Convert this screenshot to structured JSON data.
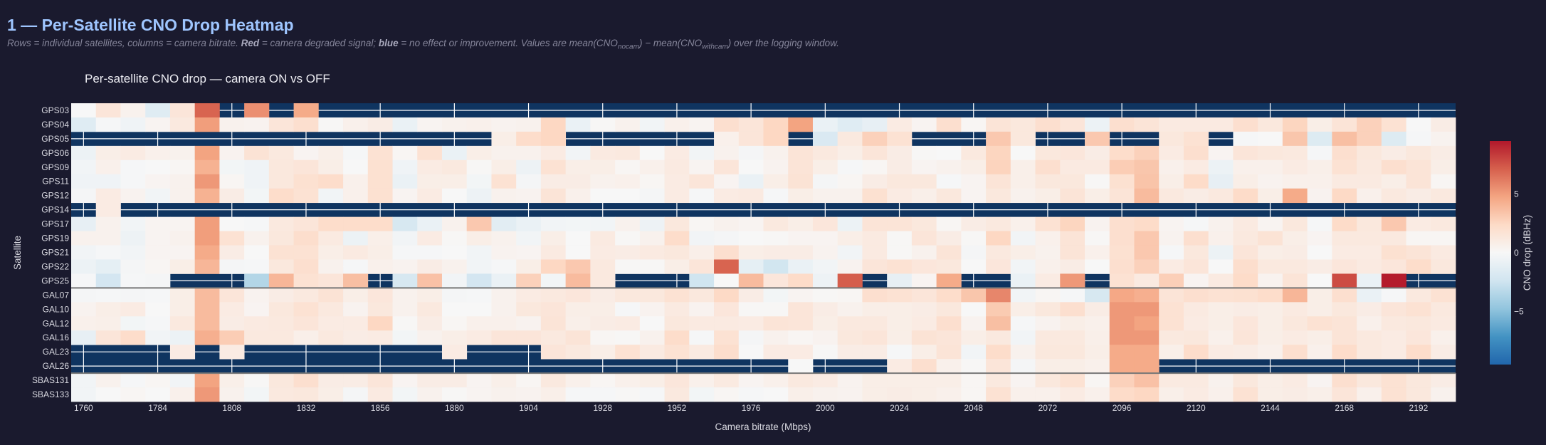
{
  "header": {
    "title": "1 — Per-Satellite CNO Drop Heatmap",
    "desc_1": "Rows = individual satellites, columns = camera bitrate. ",
    "desc_red": "Red",
    "desc_2": " = camera degraded signal; ",
    "desc_blue": "blue",
    "desc_3": " = no effect or improvement. Values are mean(CNO",
    "desc_sub1": "nocam",
    "desc_4": ") − mean(CNO",
    "desc_sub2": "withcam",
    "desc_5": ") over the logging window."
  },
  "colors": {
    "background": "#1a1a2e",
    "plot_background": "#0f3460",
    "title": "#9ec5fe",
    "colorscale": [
      "#2166ac",
      "#4393c3",
      "#92c5de",
      "#d1e5f0",
      "#f7f7f7",
      "#fddbc7",
      "#f4a582",
      "#d6604d",
      "#b2182b"
    ]
  },
  "chart_data": {
    "type": "heatmap",
    "title": "Per-satellite CNO drop — camera ON vs OFF",
    "xlabel": "Camera bitrate (Mbps)",
    "ylabel": "Satellite",
    "x": [
      1760,
      1768,
      1776,
      1784,
      1792,
      1800,
      1808,
      1816,
      1824,
      1832,
      1840,
      1848,
      1856,
      1864,
      1872,
      1880,
      1888,
      1896,
      1904,
      1912,
      1920,
      1928,
      1936,
      1944,
      1952,
      1960,
      1968,
      1976,
      1984,
      1992,
      2000,
      2008,
      2016,
      2024,
      2032,
      2040,
      2048,
      2056,
      2064,
      2072,
      2080,
      2088,
      2096,
      2104,
      2112,
      2120,
      2128,
      2136,
      2144,
      2152,
      2160,
      2168,
      2176,
      2184,
      2192,
      2200
    ],
    "x_ticks": [
      "1760",
      "1784",
      "1808",
      "1832",
      "1856",
      "1880",
      "1904",
      "1928",
      "1952",
      "1976",
      "2000",
      "2024",
      "2048",
      "2072",
      "2096",
      "2120",
      "2144",
      "2168",
      "2192"
    ],
    "y": [
      "GPS03",
      "GPS04",
      "GPS05",
      "GPS06",
      "GPS09",
      "GPS11",
      "GPS12",
      "GPS14",
      "GPS17",
      "GPS19",
      "GPS21",
      "GPS22",
      "GPS25",
      "GAL07",
      "GAL10",
      "GAL12",
      "GAL16",
      "GAL23",
      "GAL26",
      "SBAS131",
      "SBAS133"
    ],
    "zmin": -9.5,
    "zmax": 9.5,
    "colorbar": {
      "title": "CNO drop (dBHz)",
      "ticks": [
        5,
        0,
        -5
      ],
      "tick_labels": [
        "5",
        "0",
        "−5"
      ]
    },
    "missing_shown_as": "plot background",
    "z": [
      [
        0,
        1.5,
        0.5,
        -1.5,
        1.5,
        7,
        null,
        5.5,
        null,
        4.5,
        null,
        null,
        null,
        null,
        null,
        null,
        null,
        null,
        null,
        null,
        null,
        null,
        null,
        null,
        null,
        null,
        null,
        null,
        null,
        null,
        null,
        null,
        null,
        null,
        null,
        null,
        null,
        null,
        null,
        null,
        null,
        null,
        null,
        null,
        null,
        null,
        null,
        null,
        null,
        null,
        null,
        null,
        null,
        null,
        null,
        null
      ],
      [
        -1.5,
        -0.1,
        -0.5,
        0.3,
        1.2,
        5,
        0.5,
        0.4,
        1.5,
        2,
        0.1,
        0.6,
        0.9,
        -0.8,
        0.3,
        0.5,
        0.6,
        0.4,
        0.5,
        2.5,
        -0.8,
        0.1,
        0.5,
        -0.4,
        0.6,
        0.3,
        2,
        1.5,
        2.5,
        4.8,
        -0.8,
        -1.5,
        -1,
        1,
        0.3,
        2,
        0.2,
        1.6,
        1.3,
        2,
        1.5,
        -0.7,
        2,
        1.6,
        1.1,
        1.1,
        1.1,
        2,
        1.3,
        2.6,
        0.8,
        1.6,
        2.8,
        1.8,
        0,
        0.9
      ],
      [
        null,
        null,
        null,
        null,
        null,
        null,
        null,
        null,
        null,
        null,
        null,
        null,
        null,
        null,
        null,
        null,
        null,
        0.8,
        2.2,
        2.5,
        null,
        null,
        null,
        null,
        null,
        null,
        0.6,
        1.5,
        2.5,
        null,
        -1.8,
        1.2,
        2.8,
        1.8,
        null,
        null,
        null,
        3.2,
        1.3,
        null,
        null,
        3.2,
        null,
        null,
        1.3,
        1.8,
        null,
        -0.1,
        0,
        3.3,
        -1.6,
        3.6,
        2.8,
        -1.6,
        -0.1,
        0.4
      ],
      [
        -0.7,
        0.8,
        1,
        0.6,
        0.5,
        4.8,
        0.4,
        1.7,
        1.2,
        0.3,
        0.7,
        -0.1,
        1.8,
        0.2,
        1.8,
        -0.8,
        0.8,
        0.5,
        0.5,
        1,
        -0.4,
        1.1,
        1.2,
        0,
        1,
        -0.4,
        0.5,
        -0.2,
        0.5,
        1.6,
        1.2,
        0.8,
        1.5,
        0.9,
        0.1,
        0,
        1.2,
        2.6,
        0,
        1.3,
        1.4,
        0.9,
        2.2,
        2.8,
        1,
        2,
        0.3,
        1.5,
        1.3,
        1.2,
        -0.1,
        2,
        1.3,
        0.9,
        1.3,
        0.9
      ],
      [
        -0.4,
        0.6,
        -0.1,
        0,
        0.2,
        4.2,
        -0.3,
        -0.5,
        1.3,
        1.5,
        0.8,
        0,
        1.9,
        -0.5,
        1,
        1.2,
        0.1,
        0.8,
        -0.6,
        1.8,
        0.8,
        0.8,
        0.2,
        0.6,
        1.1,
        0.3,
        1.5,
        0,
        0.4,
        1.6,
        0.8,
        -0.1,
        0.2,
        0.9,
        0.3,
        0.5,
        0.8,
        2.7,
        0.7,
        2,
        1.1,
        1.1,
        3,
        3.3,
        0.6,
        1,
        -0.7,
        0.6,
        0.6,
        1,
        0.7,
        1.8,
        1.2,
        2,
        1.6,
        0.8
      ],
      [
        -0.5,
        -0.5,
        -0.1,
        0.3,
        0.5,
        5.2,
        0.2,
        -0.5,
        1.3,
        1.9,
        2.2,
        0.6,
        1.9,
        -0.8,
        0.8,
        0.8,
        -0.3,
        1.8,
        -0.2,
        0.9,
        0.9,
        0.5,
        0.6,
        0.2,
        1,
        1.5,
        0.3,
        -0.8,
        0.8,
        1.7,
        -0.2,
        0.2,
        0.9,
        1.3,
        1.3,
        -0.1,
        0.3,
        1.6,
        0.7,
        1.3,
        1.3,
        0.1,
        1.9,
        3.4,
        0.8,
        2.3,
        -1,
        0.8,
        0.4,
        0.6,
        0.6,
        1.1,
        1.1,
        0.8,
        1.6,
        0.2
      ],
      [
        -0.2,
        1,
        0.4,
        -0.4,
        0.5,
        4.2,
        0.9,
        -0.3,
        2.2,
        1.8,
        -0.4,
        0.6,
        1.9,
        0.3,
        1,
        0,
        -0.6,
        0.5,
        0.4,
        1.6,
        0.6,
        0,
        0,
        -0.2,
        1,
        -0.1,
        1,
        1.1,
        -0.1,
        0.8,
        0.5,
        0.5,
        1.9,
        1,
        0.7,
        1.3,
        0.3,
        1.3,
        0.5,
        0.8,
        1.6,
        0.8,
        1.6,
        3.8,
        1.2,
        0.9,
        1.2,
        2.3,
        0.8,
        4.5,
        0.4,
        2.4,
        0.6,
        1.2,
        0.9,
        1.2
      ],
      [
        null,
        1,
        null,
        null,
        null,
        null,
        null,
        null,
        null,
        null,
        null,
        null,
        null,
        null,
        null,
        null,
        null,
        null,
        null,
        null,
        null,
        null,
        null,
        null,
        null,
        null,
        null,
        null,
        null,
        null,
        null,
        null,
        null,
        null,
        null,
        null,
        null,
        null,
        null,
        null,
        null,
        null,
        null,
        null,
        null,
        null,
        null,
        null,
        null,
        null,
        null,
        null,
        null,
        null,
        null,
        null
      ],
      [
        -1,
        0.5,
        -0.4,
        0.3,
        0.3,
        5,
        0,
        -0.1,
        1.2,
        1.5,
        2.2,
        2.2,
        2.2,
        -2,
        -0.8,
        0.5,
        3.2,
        -1.3,
        -0.8,
        -0.4,
        -0.3,
        -0.4,
        0.5,
        -0.6,
        1.3,
        0.2,
        0.5,
        0.3,
        1.2,
        0.8,
        1.4,
        -0.7,
        1.6,
        1.6,
        1.3,
        0.2,
        0.9,
        1.2,
        0.6,
        1.8,
        2.6,
        0.4,
        2,
        2.3,
        0.3,
        -0.1,
        0.5,
        1.1,
        0.3,
        1.3,
        -0.1,
        2.3,
        1.3,
        3.2,
        1,
        1.2
      ],
      [
        0.5,
        0.5,
        -0.6,
        0.3,
        0.5,
        5,
        1.8,
        0.5,
        1.3,
        2.1,
        1.1,
        -0.7,
        0.7,
        -0.4,
        1,
        0.1,
        0.8,
        0.5,
        -0.4,
        0.8,
        0,
        1.1,
        0.1,
        0.5,
        2.2,
        -0.4,
        -0.2,
        0,
        0.1,
        0.3,
        0.3,
        0.8,
        1.1,
        0.1,
        1.5,
        0.9,
        0.1,
        2.5,
        -0.4,
        0.6,
        1.6,
        0.1,
        2,
        3.2,
        0.4,
        2,
        0.6,
        1.2,
        1.7,
        0.8,
        0.3,
        1.2,
        1.2,
        1.2,
        0.2,
        0.2
      ],
      [
        -0.4,
        -0.1,
        -0.4,
        0.3,
        0.3,
        4.5,
        0.9,
        0,
        1.8,
        1.8,
        0.8,
        1.1,
        0.8,
        -0.1,
        -0.1,
        0,
        -0.4,
        0.4,
        0.3,
        1.1,
        0,
        1,
        0.9,
        1.1,
        1.3,
        0.7,
        2,
        0.8,
        0.9,
        0.9,
        0.4,
        -0.4,
        1.1,
        0.1,
        0.5,
        1.6,
        -0.2,
        1.2,
        0.8,
        0.5,
        1.6,
        0.6,
        1.9,
        3.2,
        -0.1,
        1.3,
        -0.7,
        1.5,
        0.8,
        0.9,
        0,
        1,
        1,
        1.9,
        1.6,
        1.1
      ],
      [
        -0.7,
        -1.1,
        -0.2,
        0.2,
        0.8,
        4,
        -0.2,
        -0.1,
        1.3,
        2,
        0.5,
        -0.1,
        0.6,
        0.4,
        0.9,
        0.5,
        -0.4,
        -0.1,
        0.8,
        2.5,
        3.2,
        1.2,
        0.1,
        0.1,
        0.8,
        1.5,
        7,
        -1.1,
        -2.3,
        -0.8,
        -0.4,
        0.4,
        1.5,
        1.8,
        1.4,
        1.3,
        0,
        1.4,
        -0.4,
        0.6,
        0.9,
        0,
        2,
        2.8,
        1,
        1.5,
        0,
        2.1,
        1.2,
        1.2,
        0.9,
        1.4,
        1.1,
        1.4,
        2.2,
        1.3
      ],
      [
        -0.1,
        -2.2,
        -0.1,
        -0.2,
        null,
        null,
        null,
        -3.5,
        4,
        1.8,
        1.5,
        3.6,
        null,
        -2,
        3.5,
        -0.4,
        -2.2,
        -0.8,
        2.8,
        -0.3,
        3.8,
        1.2,
        null,
        null,
        null,
        -2.4,
        0,
        3.8,
        1.4,
        2.3,
        -0.6,
        7.2,
        null,
        -1,
        0.3,
        4.5,
        null,
        null,
        -0.8,
        1,
        5.2,
        null,
        1.8,
        1.1,
        2.9,
        0.3,
        1.1,
        2.3,
        0.4,
        1.6,
        0,
        7.8,
        -0.8,
        9.4,
        null,
        null
      ],
      [
        -0.2,
        -0.1,
        -0.2,
        -0.1,
        0.8,
        3.8,
        1.5,
        0.4,
        0.9,
        1.2,
        1.7,
        0.8,
        1.4,
        0.5,
        0.8,
        -0.2,
        -0.1,
        0.5,
        1,
        1.2,
        1.4,
        0.9,
        1.3,
        1.3,
        1.8,
        1.3,
        2.4,
        0.9,
        -0.3,
        0.3,
        0.1,
        0.2,
        2,
        1.8,
        1.5,
        2.2,
        3.3,
        5.8,
        -0.4,
        0.2,
        -0.1,
        -2,
        4.6,
        4.3,
        1.6,
        2,
        1.8,
        1.9,
        2.2,
        4,
        0.8,
        2,
        -0.8,
        -0.1,
        1.2,
        1.8
      ],
      [
        0.4,
        0.8,
        1,
        0,
        0.8,
        3.8,
        1,
        0.3,
        1.3,
        1.8,
        1.2,
        0.4,
        1.3,
        0.5,
        1.2,
        0,
        0,
        0.5,
        1.3,
        1.5,
        0.8,
        0.8,
        -0.1,
        0.4,
        1.1,
        0.4,
        1.4,
        0.1,
        0.1,
        1.5,
        0.9,
        0.5,
        0.8,
        0.8,
        0.9,
        1.3,
        0,
        3.1,
        0.8,
        1.3,
        2,
        0.9,
        5.2,
        5.2,
        1.8,
        1.1,
        0.8,
        0.9,
        0.8,
        1.1,
        0.8,
        1.3,
        0.9,
        1.5,
        1.8,
        1.2
      ],
      [
        0.6,
        0.7,
        -0.3,
        -0.1,
        1.2,
        3.8,
        0.9,
        1.1,
        1.2,
        1.5,
        1,
        1,
        2.5,
        0.1,
        0.9,
        0.2,
        0.6,
        0.6,
        0.4,
        1.6,
        0.7,
        0.9,
        1,
        0,
        1.3,
        1.1,
        1.1,
        1,
        1.6,
        1.5,
        0.8,
        1.2,
        1.2,
        0.8,
        1,
        2,
        0.4,
        3.6,
        -0.1,
        0.4,
        0.8,
        0.6,
        5.2,
        4.8,
        1.8,
        1,
        0.8,
        1.4,
        0.8,
        1.3,
        1.8,
        1.6,
        0.6,
        1.2,
        1.3,
        1.1
      ],
      [
        -1,
        1.5,
        2.2,
        -0.4,
        -0.7,
        4.3,
        3,
        1.2,
        1.2,
        0.7,
        1.2,
        0.9,
        1,
        -0.3,
        0.5,
        0.8,
        1,
        1.5,
        1.5,
        1.2,
        1.6,
        0.2,
        0.1,
        0.5,
        2.2,
        -0.1,
        1.8,
        -0.2,
        0.5,
        0.2,
        0.4,
        1.3,
        1.5,
        0.8,
        1.7,
        1.5,
        0.8,
        1.2,
        -0.4,
        1.2,
        1.2,
        0.7,
        5.2,
        5.2,
        1.2,
        1.3,
        0.6,
        1.5,
        0.8,
        1,
        0.8,
        1.6,
        1.2,
        1,
        1.4,
        0.6
      ],
      [
        null,
        null,
        null,
        null,
        1,
        null,
        1,
        null,
        null,
        null,
        null,
        null,
        null,
        null,
        null,
        1,
        null,
        null,
        null,
        1.5,
        1.2,
        0.8,
        1.8,
        1.1,
        1.8,
        1.1,
        2.1,
        0,
        1,
        1,
        0.1,
        0.9,
        0.9,
        -0.1,
        0.8,
        1.6,
        -0.4,
        2.2,
        0.5,
        1.3,
        1.3,
        0.8,
        4.5,
        4.5,
        0.7,
        2.2,
        1,
        0.9,
        0.6,
        2,
        0.6,
        2.2,
        1.2,
        1,
        2.2,
        0.9
      ],
      [
        null,
        null,
        null,
        null,
        null,
        null,
        null,
        null,
        null,
        null,
        null,
        null,
        null,
        null,
        null,
        null,
        null,
        null,
        null,
        null,
        null,
        null,
        null,
        null,
        null,
        null,
        null,
        null,
        null,
        0,
        null,
        null,
        null,
        1,
        2,
        0.6,
        0.1,
        1.5,
        -0.2,
        0.8,
        0.8,
        0.6,
        4.5,
        4.5,
        null,
        null,
        null,
        null,
        null,
        null,
        null,
        null,
        null,
        null,
        null,
        null
      ],
      [
        -0.4,
        0.5,
        -0.1,
        0.2,
        -0.4,
        4.8,
        0.7,
        0.1,
        1.3,
        2,
        0.9,
        0.9,
        1.5,
        0.3,
        0.9,
        0.9,
        0.3,
        0.7,
        0.2,
        1.2,
        0.6,
        0.2,
        0.6,
        0.8,
        1.4,
        0.6,
        1.1,
        0.3,
        0.6,
        1.2,
        1,
        0.4,
        0.8,
        0.8,
        0.8,
        0.8,
        0.2,
        1.2,
        0.3,
        1.3,
        1.8,
        0.2,
        2.8,
        3.5,
        1.1,
        1.1,
        0.5,
        1.3,
        0.8,
        1,
        0.3,
        2,
        1.3,
        1.8,
        1.3,
        0.9
      ],
      [
        -0.4,
        0,
        0.2,
        0,
        0.6,
        5.2,
        0.5,
        -0.3,
        1.2,
        1.3,
        0.8,
        -0.2,
        1.1,
        -0.3,
        0.5,
        0.1,
        0.3,
        0.5,
        0.4,
        0.7,
        -0.1,
        -0.1,
        0.1,
        -0.1,
        1.2,
        -0.3,
        0.2,
        -0.1,
        0,
        0.7,
        0.5,
        0.4,
        0.8,
        0.9,
        0.8,
        0.6,
        0.2,
        1.8,
        0.6,
        0.6,
        1,
        0.6,
        2.3,
        2.5,
        0.7,
        1,
        0.6,
        1.8,
        0.8,
        0.9,
        0.7,
        1.5,
        0.6,
        1.8,
        1.3,
        0.5
      ]
    ]
  }
}
